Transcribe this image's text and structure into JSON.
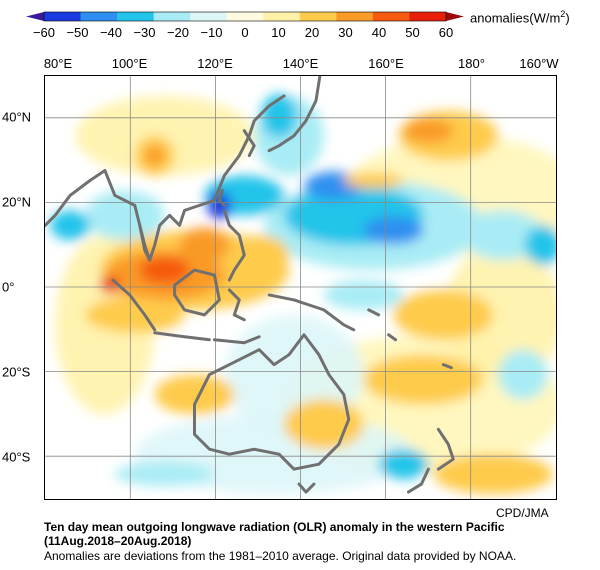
{
  "colorbar": {
    "tick_labels": [
      "−60",
      "−50",
      "−40",
      "−30",
      "−20",
      "−10",
      "0",
      "10",
      "20",
      "30",
      "40",
      "50",
      "60"
    ],
    "colors": [
      "#1a3ae0",
      "#2f8ff0",
      "#22c4ea",
      "#a9ecf5",
      "#ddf6f8",
      "#fffbe0",
      "#fff2a8",
      "#fecb4c",
      "#fa9a28",
      "#f55a10",
      "#e81e0a"
    ],
    "units_prefix": "anomalies(W/m",
    "units_sup": "2",
    "units_suffix": ")"
  },
  "map": {
    "lon_labels": [
      "80°E",
      "100°E",
      "120°E",
      "140°E",
      "160°E",
      "180°",
      "160°W"
    ],
    "lat_labels": [
      "40°N",
      "20°N",
      "0°",
      "20°S",
      "40°S"
    ],
    "grid_color": "#888888",
    "coast_color": "#707070",
    "ocean_color": "#ffffff"
  },
  "credit": "CPD/JMA",
  "caption": {
    "line1": "Ten day mean outgoing longwave radiation (OLR) anomaly in the western Pacific",
    "line2": "(11Aug.2018–20Aug.2018)",
    "line3": "Anomalies are deviations from the 1981–2010 average. Original data provided by NOAA."
  }
}
